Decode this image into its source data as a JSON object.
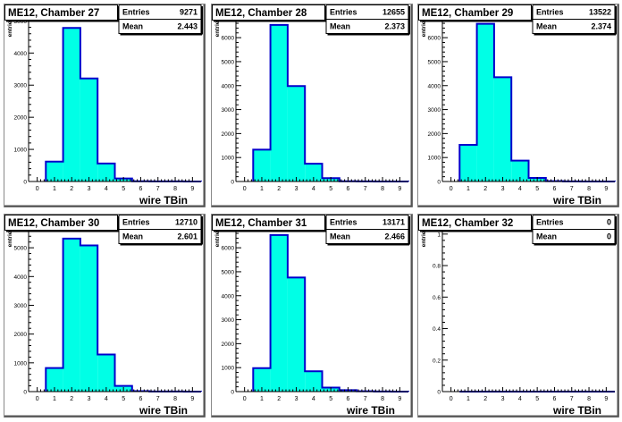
{
  "chart_data": [
    {
      "type": "bar",
      "title": "ME12, Chamber 27",
      "xlabel": "wire TBin",
      "ylabel": "entries",
      "stats": {
        "entries_label": "Entries",
        "entries": "9271",
        "mean_label": "Mean",
        "mean": "2.443"
      },
      "xlim": [
        -0.5,
        9.5
      ],
      "ylim": [
        0,
        5150
      ],
      "x_ticks": [
        "0",
        "1",
        "2",
        "3",
        "4",
        "5",
        "6",
        "7",
        "8",
        "9"
      ],
      "y_ticks": [
        0,
        1000,
        2000,
        3000,
        4000,
        5000
      ],
      "y_tick_labels": [
        "0",
        "1000",
        "2000",
        "3000",
        "4000",
        "5000"
      ],
      "bin_width": 1,
      "bin_centers": [
        1,
        2,
        3,
        4,
        5,
        6,
        7,
        8,
        9
      ],
      "values": [
        620,
        4780,
        3210,
        560,
        95,
        8,
        3,
        2,
        1
      ],
      "fill_color": "#00ffe6",
      "line_color": "#0000cc"
    },
    {
      "type": "bar",
      "title": "ME12, Chamber 28",
      "xlabel": "",
      "ylabel": "entries",
      "stats": {
        "entries_label": "Entries",
        "entries": "12655",
        "mean_label": "Mean",
        "mean": "2.373"
      },
      "xlim": [
        -0.5,
        9.5
      ],
      "ylim": [
        0,
        6900
      ],
      "x_ticks": [
        "0",
        "1",
        "2",
        "3",
        "4",
        "5",
        "6",
        "7",
        "8",
        "9"
      ],
      "y_ticks": [
        0,
        1000,
        2000,
        3000,
        4000,
        5000,
        6000
      ],
      "y_tick_labels": [
        "0",
        "1000",
        "2000",
        "3000",
        "4000",
        "5000",
        "6000"
      ],
      "bin_width": 1,
      "bin_centers": [
        1,
        2,
        3,
        4,
        5,
        6,
        7,
        8,
        9
      ],
      "values": [
        1330,
        6530,
        3980,
        740,
        140,
        10,
        3,
        2,
        1
      ],
      "fill_color": "#00ffe6",
      "line_color": "#0000cc"
    },
    {
      "type": "bar",
      "title": "ME12, Chamber 29",
      "xlabel": "wire TBin",
      "ylabel": "entries",
      "stats": {
        "entries_label": "Entries",
        "entries": "13522",
        "mean_label": "Mean",
        "mean": "2.374"
      },
      "xlim": [
        -0.5,
        9.5
      ],
      "ylim": [
        0,
        6900
      ],
      "x_ticks": [
        "0",
        "1",
        "2",
        "3",
        "4",
        "5",
        "6",
        "7",
        "8",
        "9"
      ],
      "y_ticks": [
        0,
        1000,
        2000,
        3000,
        4000,
        5000,
        6000
      ],
      "y_tick_labels": [
        "0",
        "1000",
        "2000",
        "3000",
        "4000",
        "5000",
        "6000"
      ],
      "bin_width": 1,
      "bin_centers": [
        1,
        2,
        3,
        4,
        5,
        6,
        7,
        8,
        9
      ],
      "values": [
        1530,
        6580,
        4350,
        870,
        150,
        12,
        4,
        2,
        1
      ],
      "fill_color": "#00ffe6",
      "line_color": "#0000cc"
    },
    {
      "type": "bar",
      "title": "ME12, Chamber 30",
      "xlabel": "wire TBin",
      "ylabel": "entries",
      "stats": {
        "entries_label": "Entries",
        "entries": "12710",
        "mean_label": "Mean",
        "mean": "2.601"
      },
      "xlim": [
        -0.5,
        9.5
      ],
      "ylim": [
        0,
        5750
      ],
      "x_ticks": [
        "0",
        "1",
        "2",
        "3",
        "4",
        "5",
        "6",
        "7",
        "8",
        "9"
      ],
      "y_ticks": [
        0,
        1000,
        2000,
        3000,
        4000,
        5000
      ],
      "y_tick_labels": [
        "0",
        "1000",
        "2000",
        "3000",
        "4000",
        "5000"
      ],
      "bin_width": 1,
      "bin_centers": [
        1,
        2,
        3,
        4,
        5,
        6,
        7,
        8,
        9
      ],
      "values": [
        820,
        5320,
        5080,
        1290,
        200,
        15,
        5,
        2,
        1
      ],
      "fill_color": "#00ffe6",
      "line_color": "#0000cc"
    },
    {
      "type": "bar",
      "title": "ME12, Chamber 31",
      "xlabel": "wire TBin",
      "ylabel": "entries",
      "stats": {
        "entries_label": "Entries",
        "entries": "13171",
        "mean_label": "Mean",
        "mean": "2.466"
      },
      "xlim": [
        -0.5,
        9.5
      ],
      "ylim": [
        0,
        6900
      ],
      "x_ticks": [
        "0",
        "1",
        "2",
        "3",
        "4",
        "5",
        "6",
        "7",
        "8",
        "9"
      ],
      "y_ticks": [
        0,
        1000,
        2000,
        3000,
        4000,
        5000,
        6000
      ],
      "y_tick_labels": [
        "0",
        "1000",
        "2000",
        "3000",
        "4000",
        "5000",
        "6000"
      ],
      "bin_width": 1,
      "bin_centers": [
        1,
        2,
        3,
        4,
        5,
        6,
        7,
        8,
        9
      ],
      "values": [
        980,
        6530,
        4760,
        850,
        170,
        60,
        15,
        4,
        1
      ],
      "fill_color": "#00ffe6",
      "line_color": "#0000cc"
    },
    {
      "type": "bar",
      "title": "ME12, Chamber 32",
      "xlabel": "wire TBin",
      "ylabel": "entries",
      "stats": {
        "entries_label": "Entries",
        "entries": "0",
        "mean_label": "Mean",
        "mean": "0"
      },
      "xlim": [
        -0.5,
        9.5
      ],
      "ylim": [
        0,
        1.05
      ],
      "x_ticks": [
        "0",
        "1",
        "2",
        "3",
        "4",
        "5",
        "6",
        "7",
        "8",
        "9"
      ],
      "y_ticks": [
        0,
        0.2,
        0.4,
        0.6,
        0.8,
        1
      ],
      "y_tick_labels": [
        "0",
        "0.2",
        "0.4",
        "0.6",
        "0.8",
        "1"
      ],
      "bin_width": 1,
      "bin_centers": [
        1,
        2,
        3,
        4,
        5,
        6,
        7,
        8,
        9
      ],
      "values": [
        0,
        0,
        0,
        0,
        0,
        0,
        0,
        0,
        0
      ],
      "fill_color": "#00ffe6",
      "line_color": "#0000cc"
    }
  ]
}
